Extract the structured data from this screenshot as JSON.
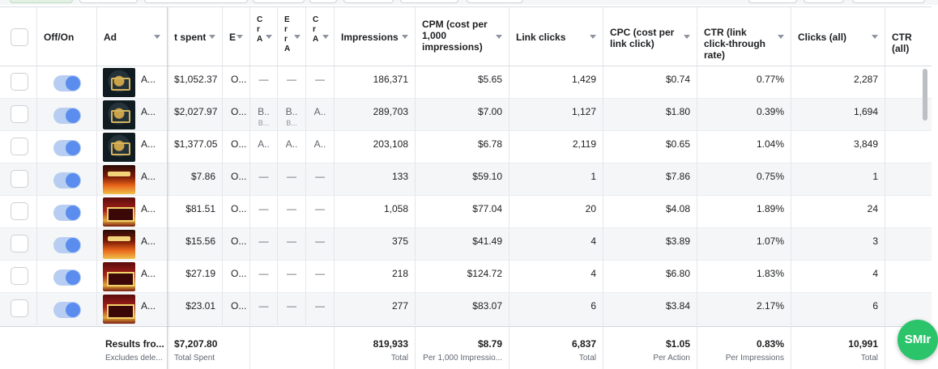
{
  "header": {
    "select_all": "",
    "columns": {
      "off_on": "Off/On",
      "ad": "Ad",
      "spent": "t spent",
      "b": "E",
      "col_a": "C r A",
      "col_b": "E r r A",
      "col_c": "C r A",
      "impressions": "Impressions",
      "cpm": "CPM (cost per 1,000 impressions)",
      "link_clicks": "Link clicks",
      "cpc": "CPC (cost per link click)",
      "ctr": "CTR (link click-through rate)",
      "clicks_all": "Clicks (all)",
      "ctr_all": "CTR (all)"
    }
  },
  "rows": [
    {
      "ad": "A...",
      "thumb": "dark",
      "spent": "$1,052.37",
      "b": "O...",
      "c1": "—",
      "c2": "—",
      "c3": "—",
      "c1s": "",
      "c2s": "",
      "impressions": "186,371",
      "cpm": "$5.65",
      "link_clicks": "1,429",
      "cpc": "$0.74",
      "ctr": "0.77%",
      "clicks_all": "2,287"
    },
    {
      "ad": "A...",
      "thumb": "dark",
      "spent": "$2,027.97",
      "b": "O...",
      "c1": "B..",
      "c2": "B..",
      "c3": "A..",
      "c1s": "B...",
      "c2s": "B...",
      "impressions": "289,703",
      "cpm": "$7.00",
      "link_clicks": "1,127",
      "cpc": "$1.80",
      "ctr": "0.39%",
      "clicks_all": "1,694"
    },
    {
      "ad": "A...",
      "thumb": "dark",
      "spent": "$1,377.05",
      "b": "O...",
      "c1": "A..",
      "c2": "A..",
      "c3": "A..",
      "c1s": "",
      "c2s": "",
      "impressions": "203,108",
      "cpm": "$6.78",
      "link_clicks": "2,119",
      "cpc": "$0.65",
      "ctr": "1.04%",
      "clicks_all": "3,849"
    },
    {
      "ad": "A...",
      "thumb": "fire",
      "spent": "$7.86",
      "b": "O...",
      "c1": "—",
      "c2": "—",
      "c3": "—",
      "c1s": "",
      "c2s": "",
      "impressions": "133",
      "cpm": "$59.10",
      "link_clicks": "1",
      "cpc": "$7.86",
      "ctr": "0.75%",
      "clicks_all": "1"
    },
    {
      "ad": "A...",
      "thumb": "slot",
      "spent": "$81.51",
      "b": "O...",
      "c1": "—",
      "c2": "—",
      "c3": "—",
      "c1s": "",
      "c2s": "",
      "impressions": "1,058",
      "cpm": "$77.04",
      "link_clicks": "20",
      "cpc": "$4.08",
      "ctr": "1.89%",
      "clicks_all": "24"
    },
    {
      "ad": "A...",
      "thumb": "fire",
      "spent": "$15.56",
      "b": "O...",
      "c1": "—",
      "c2": "—",
      "c3": "—",
      "c1s": "",
      "c2s": "",
      "impressions": "375",
      "cpm": "$41.49",
      "link_clicks": "4",
      "cpc": "$3.89",
      "ctr": "1.07%",
      "clicks_all": "3"
    },
    {
      "ad": "A...",
      "thumb": "slot",
      "spent": "$27.19",
      "b": "O...",
      "c1": "—",
      "c2": "—",
      "c3": "—",
      "c1s": "",
      "c2s": "",
      "impressions": "218",
      "cpm": "$124.72",
      "link_clicks": "4",
      "cpc": "$6.80",
      "ctr": "1.83%",
      "clicks_all": "4"
    },
    {
      "ad": "A...",
      "thumb": "slot",
      "spent": "$23.01",
      "b": "O...",
      "c1": "—",
      "c2": "—",
      "c3": "—",
      "c1s": "",
      "c2s": "",
      "impressions": "277",
      "cpm": "$83.07",
      "link_clicks": "6",
      "cpc": "$3.84",
      "ctr": "2.17%",
      "clicks_all": "6"
    }
  ],
  "footer": {
    "results": "Results fro...",
    "results_sub": "Excludes dele...",
    "spent": "$7,207.80",
    "spent_sub": "Total Spent",
    "impressions": "819,933",
    "impressions_sub": "Total",
    "cpm": "$8.79",
    "cpm_sub": "Per 1,000 Impressio...",
    "link_clicks": "6,837",
    "link_clicks_sub": "Total",
    "cpc": "$1.05",
    "cpc_sub": "Per Action",
    "ctr": "0.83%",
    "ctr_sub": "Per Impressions",
    "clicks_all": "10,991",
    "clicks_all_sub": "Total"
  },
  "widget": {
    "label": "SMIr"
  },
  "colors": {
    "toggle_on": "#5a8dee",
    "widget": "#2bc46a"
  },
  "icons": {
    "sort": "chevron-down-icon",
    "toggle": "toggle-switch-icon",
    "check": "checkbox-icon"
  }
}
